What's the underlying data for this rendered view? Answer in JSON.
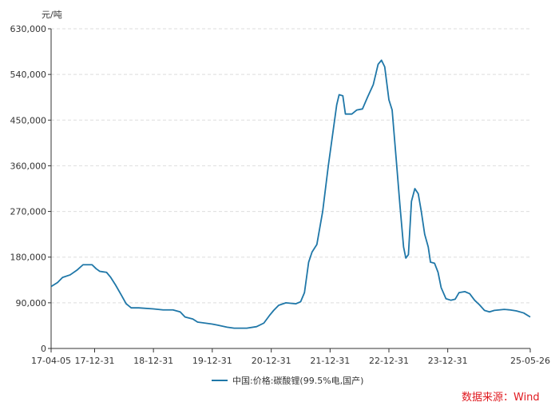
{
  "chart_data": {
    "type": "line",
    "ylabel": "元/吨",
    "ylim": [
      0,
      630000
    ],
    "yticks": [
      0,
      90000,
      180000,
      270000,
      360000,
      450000,
      540000,
      630000
    ],
    "ytick_labels": [
      "0",
      "90,000",
      "180,000",
      "270,000",
      "360,000",
      "450,000",
      "540,000",
      "630,000"
    ],
    "xlim": [
      "2017-04-05",
      "2025-05-26"
    ],
    "xticks": [
      "2017-04-05",
      "2017-12-31",
      "2018-12-31",
      "2019-12-31",
      "2020-12-31",
      "2021-12-31",
      "2022-12-31",
      "2023-12-31",
      "2025-05-26"
    ],
    "xtick_labels": [
      "17-04-05",
      "17-12-31",
      "18-12-31",
      "19-12-31",
      "20-12-31",
      "21-12-31",
      "22-12-31",
      "23-12-31",
      "25-05-26"
    ],
    "grid": true,
    "legend_position": "bottom",
    "series": [
      {
        "name": "中国:价格:碳酸锂(99.5%电,国产)",
        "color": "#1f77a8",
        "points": [
          [
            "2017-04-05",
            122000
          ],
          [
            "2017-05-15",
            130000
          ],
          [
            "2017-06-15",
            140000
          ],
          [
            "2017-08-01",
            145000
          ],
          [
            "2017-09-15",
            155000
          ],
          [
            "2017-10-20",
            165000
          ],
          [
            "2017-12-15",
            165000
          ],
          [
            "2018-01-10",
            157000
          ],
          [
            "2018-02-01",
            152000
          ],
          [
            "2018-03-15",
            150000
          ],
          [
            "2018-04-10",
            140000
          ],
          [
            "2018-05-10",
            125000
          ],
          [
            "2018-06-15",
            105000
          ],
          [
            "2018-07-15",
            88000
          ],
          [
            "2018-08-15",
            80000
          ],
          [
            "2018-10-01",
            80000
          ],
          [
            "2018-12-31",
            78000
          ],
          [
            "2019-03-01",
            76000
          ],
          [
            "2019-05-01",
            76000
          ],
          [
            "2019-06-15",
            72000
          ],
          [
            "2019-07-15",
            62000
          ],
          [
            "2019-09-01",
            58000
          ],
          [
            "2019-10-01",
            52000
          ],
          [
            "2019-12-31",
            48000
          ],
          [
            "2020-02-01",
            46000
          ],
          [
            "2020-04-01",
            42000
          ],
          [
            "2020-05-15",
            40000
          ],
          [
            "2020-08-01",
            40000
          ],
          [
            "2020-10-01",
            43000
          ],
          [
            "2020-11-15",
            50000
          ],
          [
            "2020-12-20",
            65000
          ],
          [
            "2021-01-15",
            75000
          ],
          [
            "2021-02-15",
            85000
          ],
          [
            "2021-04-01",
            90000
          ],
          [
            "2021-06-01",
            88000
          ],
          [
            "2021-07-01",
            92000
          ],
          [
            "2021-07-25",
            110000
          ],
          [
            "2021-08-20",
            170000
          ],
          [
            "2021-09-10",
            190000
          ],
          [
            "2021-10-10",
            205000
          ],
          [
            "2021-11-15",
            270000
          ],
          [
            "2021-12-20",
            360000
          ],
          [
            "2022-01-15",
            420000
          ],
          [
            "2022-02-10",
            480000
          ],
          [
            "2022-02-25",
            500000
          ],
          [
            "2022-03-20",
            498000
          ],
          [
            "2022-04-05",
            462000
          ],
          [
            "2022-05-15",
            462000
          ],
          [
            "2022-06-15",
            470000
          ],
          [
            "2022-07-20",
            472000
          ],
          [
            "2022-08-20",
            495000
          ],
          [
            "2022-09-25",
            520000
          ],
          [
            "2022-10-25",
            560000
          ],
          [
            "2022-11-15",
            568000
          ],
          [
            "2022-12-05",
            555000
          ],
          [
            "2022-12-31",
            490000
          ],
          [
            "2023-01-20",
            470000
          ],
          [
            "2023-02-15",
            370000
          ],
          [
            "2023-03-10",
            280000
          ],
          [
            "2023-04-01",
            200000
          ],
          [
            "2023-04-15",
            178000
          ],
          [
            "2023-05-01",
            185000
          ],
          [
            "2023-05-20",
            290000
          ],
          [
            "2023-06-10",
            315000
          ],
          [
            "2023-07-01",
            305000
          ],
          [
            "2023-07-20",
            270000
          ],
          [
            "2023-08-10",
            225000
          ],
          [
            "2023-09-01",
            200000
          ],
          [
            "2023-09-15",
            170000
          ],
          [
            "2023-10-10",
            168000
          ],
          [
            "2023-11-01",
            150000
          ],
          [
            "2023-11-20",
            120000
          ],
          [
            "2023-12-20",
            98000
          ],
          [
            "2024-01-20",
            95000
          ],
          [
            "2024-02-15",
            97000
          ],
          [
            "2024-03-10",
            110000
          ],
          [
            "2024-04-15",
            112000
          ],
          [
            "2024-05-15",
            108000
          ],
          [
            "2024-06-15",
            95000
          ],
          [
            "2024-07-15",
            86000
          ],
          [
            "2024-08-15",
            75000
          ],
          [
            "2024-09-15",
            72000
          ],
          [
            "2024-10-15",
            75000
          ],
          [
            "2024-11-15",
            76000
          ],
          [
            "2024-12-15",
            77000
          ],
          [
            "2025-01-20",
            76000
          ],
          [
            "2025-03-01",
            74000
          ],
          [
            "2025-04-15",
            70000
          ],
          [
            "2025-05-26",
            62000
          ]
        ]
      }
    ]
  },
  "source": "数据来源：Wind",
  "colors": {
    "source_text": "#e0191f",
    "grid": "#dddddd",
    "axis": "#333333"
  }
}
